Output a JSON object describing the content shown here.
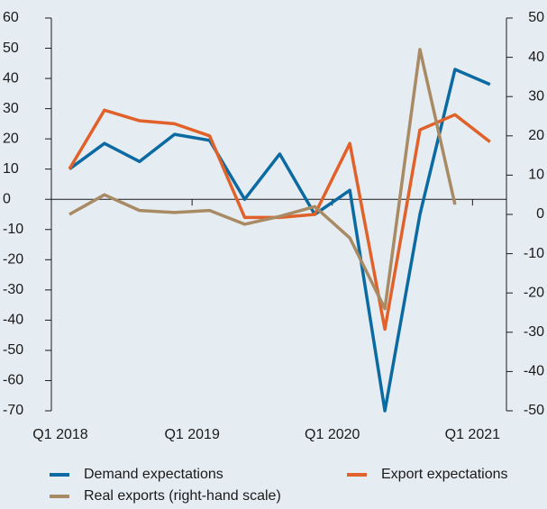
{
  "chart_data": {
    "type": "line",
    "categories": [
      "Q1 2018",
      null,
      null,
      null,
      "Q1 2019",
      null,
      null,
      null,
      "Q1 2020",
      null,
      null,
      null,
      "Q1 2021"
    ],
    "series": [
      {
        "name": "Demand expectations",
        "color": "#0b6aa2",
        "values": [
          10,
          18.5,
          12.5,
          21.5,
          19.5,
          0,
          15,
          -5,
          3,
          -70,
          -5,
          43,
          38
        ]
      },
      {
        "name": "Export expectations",
        "color": "#e0622a",
        "values": [
          10,
          29.5,
          26,
          25,
          21,
          -6,
          -6,
          -5,
          18.5,
          -43,
          23,
          28,
          19
        ]
      },
      {
        "name": "Real exports (right-hand scale)",
        "color": "#a88a64",
        "axis": "y2",
        "values": [
          0,
          5,
          1,
          0.5,
          1,
          -2.5,
          -0.5,
          2,
          -6,
          -24,
          42,
          2.5,
          null
        ]
      }
    ],
    "ylim": [
      -70,
      60
    ],
    "yticks": [
      60,
      50,
      40,
      30,
      20,
      10,
      0,
      -10,
      -20,
      -30,
      -40,
      -50,
      -60,
      -70
    ],
    "y2lim": [
      -50,
      50
    ],
    "y2ticks": [
      50,
      40,
      30,
      20,
      10,
      0,
      -10,
      -20,
      -30,
      -40,
      -50
    ]
  }
}
